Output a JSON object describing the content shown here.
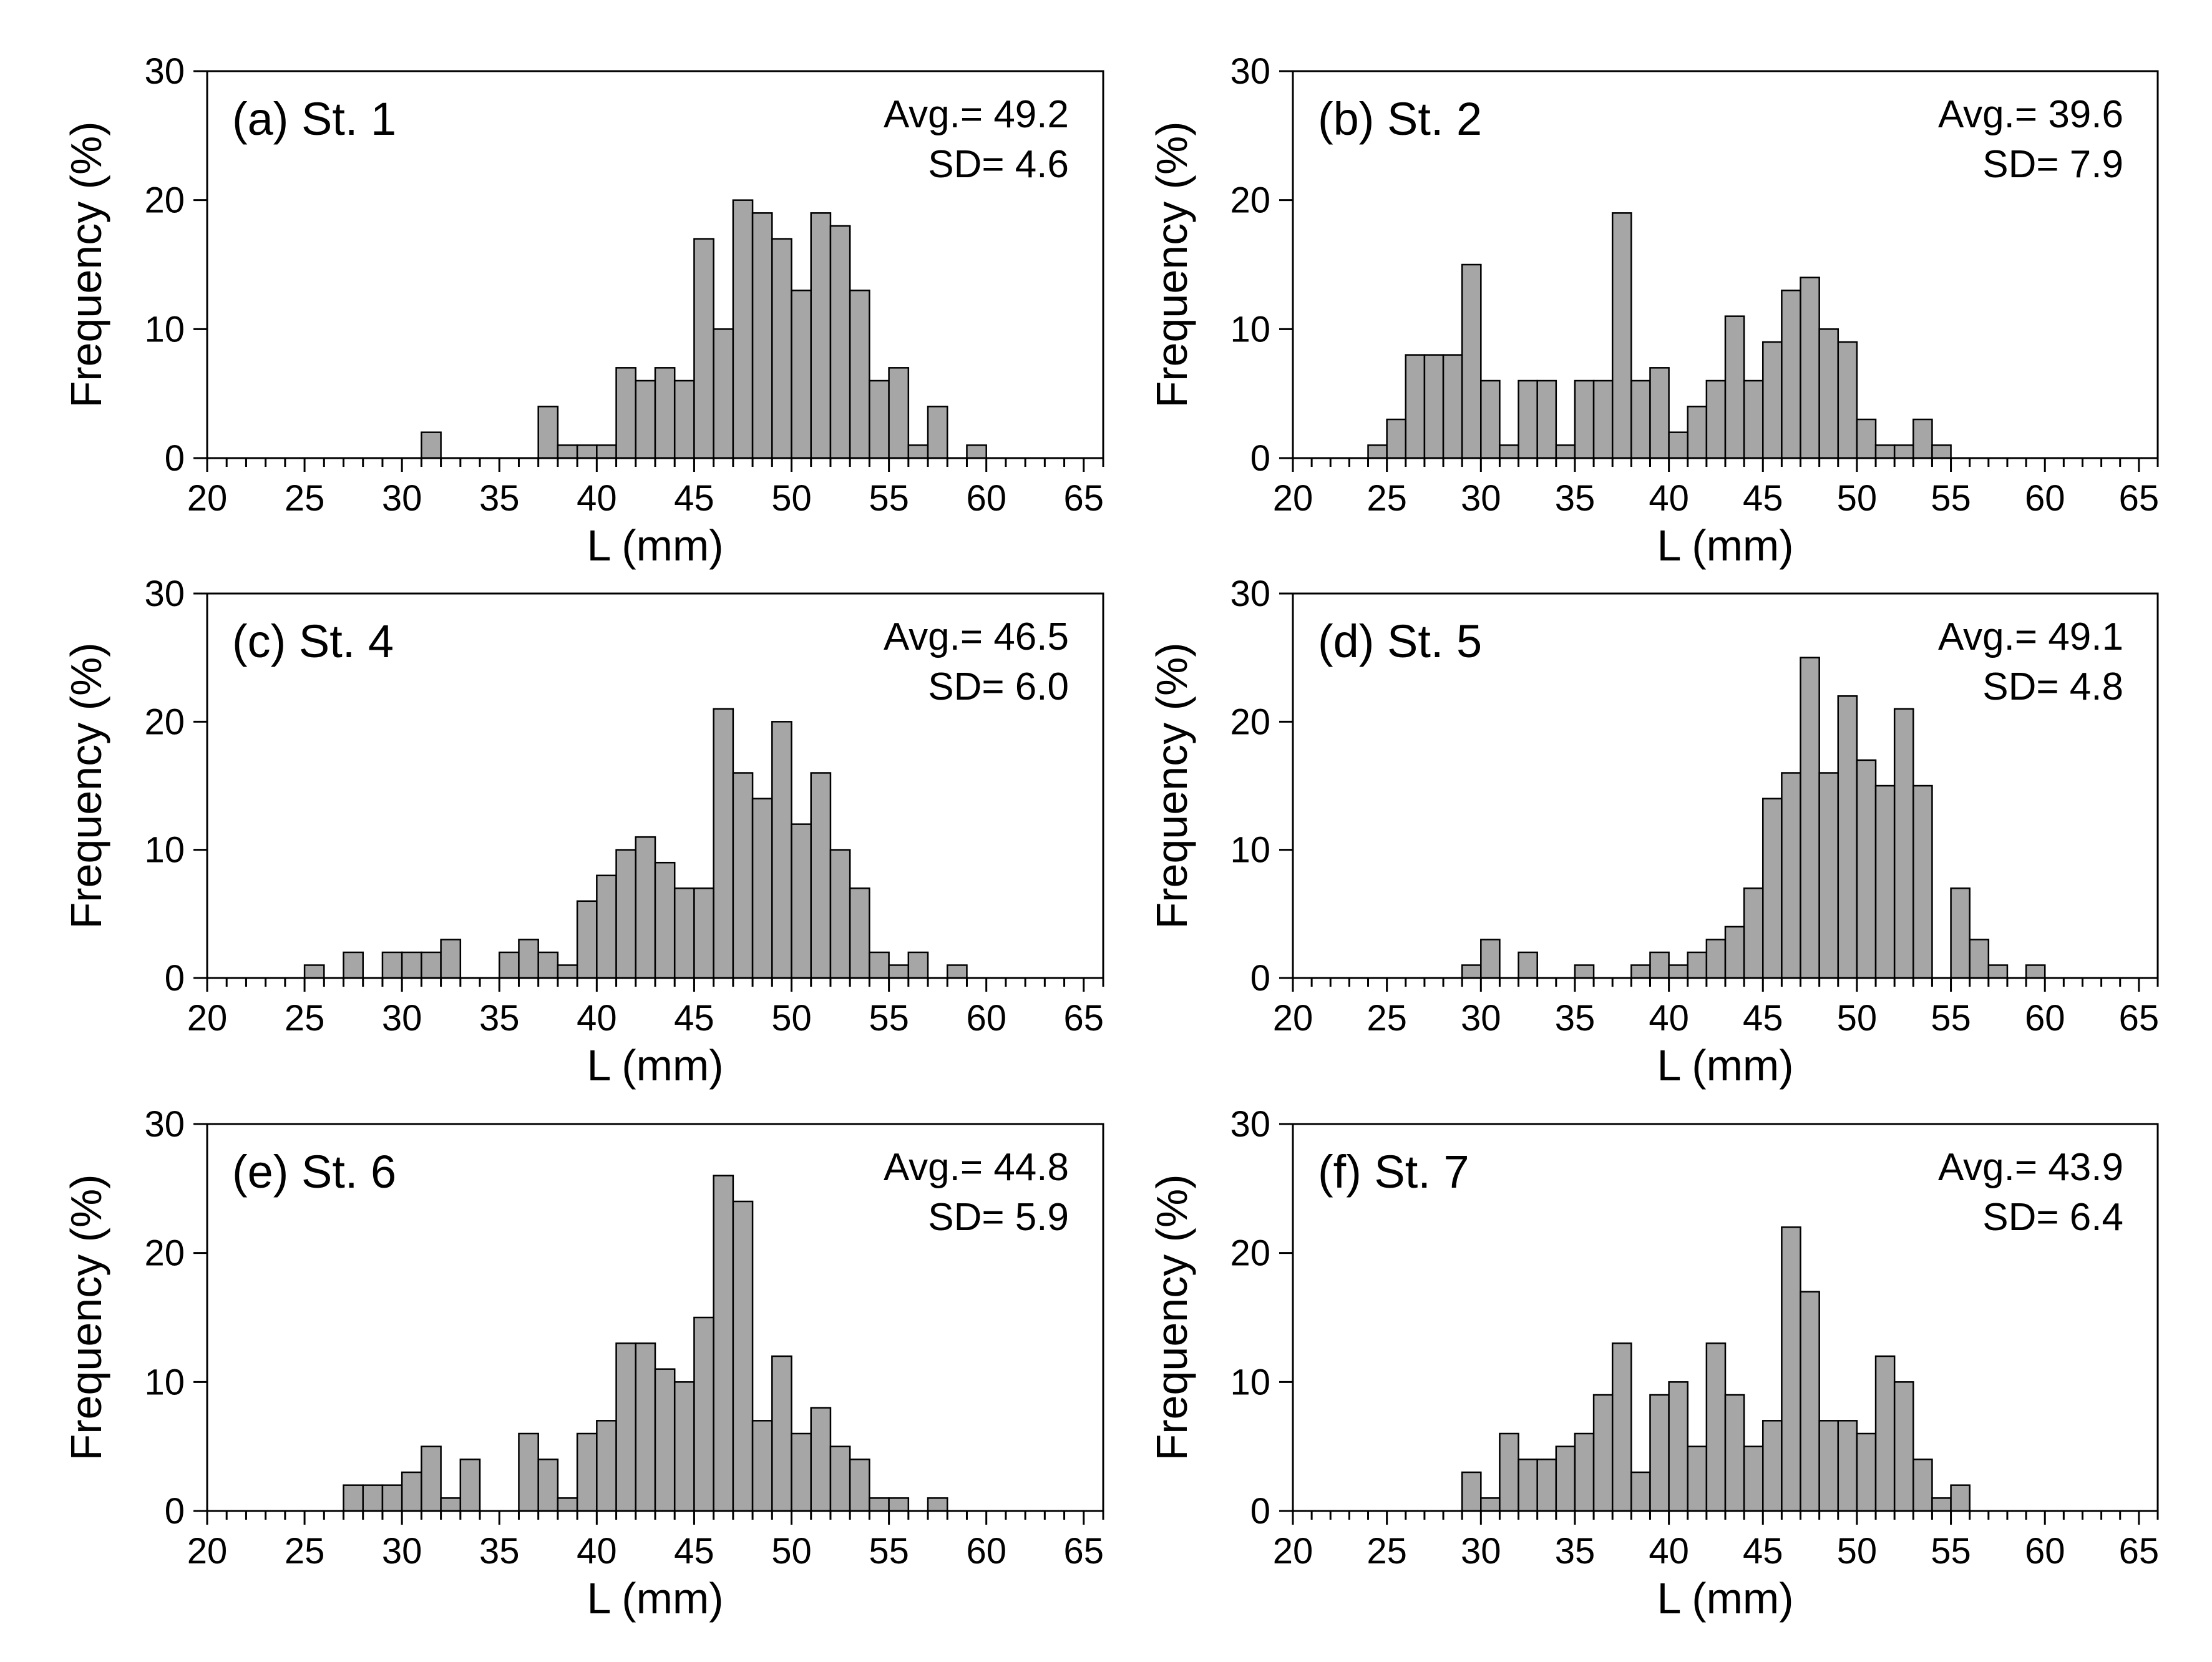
{
  "figure": {
    "bar_color": "#a6a6a6",
    "edge_color": "#000000",
    "background": "#ffffff"
  },
  "chart_data": [
    {
      "type": "bar",
      "label": "(a) St. 1",
      "stats": [
        "Avg.= 49.2",
        "SD= 4.6"
      ],
      "xlabel": "L (mm)",
      "ylabel": "Frequency (%)",
      "xlim": [
        20,
        66
      ],
      "ylim": [
        0,
        30
      ],
      "xticks": [
        20,
        25,
        30,
        35,
        40,
        45,
        50,
        55,
        60,
        65
      ],
      "yticks": [
        0,
        10,
        20,
        30
      ],
      "bins": [
        [
          31,
          2
        ],
        [
          37,
          4
        ],
        [
          38,
          1
        ],
        [
          39,
          1
        ],
        [
          40,
          1
        ],
        [
          41,
          7
        ],
        [
          42,
          6
        ],
        [
          43,
          7
        ],
        [
          44,
          6
        ],
        [
          45,
          17
        ],
        [
          46,
          10
        ],
        [
          47,
          20
        ],
        [
          48,
          19
        ],
        [
          49,
          17
        ],
        [
          50,
          13
        ],
        [
          51,
          19
        ],
        [
          52,
          18
        ],
        [
          53,
          13
        ],
        [
          54,
          6
        ],
        [
          55,
          7
        ],
        [
          56,
          1
        ],
        [
          57,
          4
        ],
        [
          59,
          1
        ]
      ]
    },
    {
      "type": "bar",
      "label": "(b) St. 2",
      "stats": [
        "Avg.= 39.6",
        "SD= 7.9"
      ],
      "xlabel": "L (mm)",
      "ylabel": "Frequency (%)",
      "xlim": [
        20,
        66
      ],
      "ylim": [
        0,
        30
      ],
      "xticks": [
        20,
        25,
        30,
        35,
        40,
        45,
        50,
        55,
        60,
        65
      ],
      "yticks": [
        0,
        10,
        20,
        30
      ],
      "bins": [
        [
          24,
          1
        ],
        [
          25,
          3
        ],
        [
          26,
          8
        ],
        [
          27,
          8
        ],
        [
          28,
          8
        ],
        [
          29,
          15
        ],
        [
          30,
          6
        ],
        [
          31,
          1
        ],
        [
          32,
          6
        ],
        [
          33,
          6
        ],
        [
          34,
          1
        ],
        [
          35,
          6
        ],
        [
          36,
          6
        ],
        [
          37,
          19
        ],
        [
          38,
          6
        ],
        [
          39,
          7
        ],
        [
          40,
          2
        ],
        [
          41,
          4
        ],
        [
          42,
          6
        ],
        [
          43,
          11
        ],
        [
          44,
          6
        ],
        [
          45,
          9
        ],
        [
          46,
          13
        ],
        [
          47,
          14
        ],
        [
          48,
          10
        ],
        [
          49,
          9
        ],
        [
          50,
          3
        ],
        [
          51,
          1
        ],
        [
          52,
          1
        ],
        [
          53,
          3
        ],
        [
          54,
          1
        ]
      ]
    },
    {
      "type": "bar",
      "label": "(c) St. 4",
      "stats": [
        "Avg.= 46.5",
        "SD= 6.0"
      ],
      "xlabel": "L (mm)",
      "ylabel": "Frequency (%)",
      "xlim": [
        20,
        66
      ],
      "ylim": [
        0,
        30
      ],
      "xticks": [
        20,
        25,
        30,
        35,
        40,
        45,
        50,
        55,
        60,
        65
      ],
      "yticks": [
        0,
        10,
        20,
        30
      ],
      "bins": [
        [
          25,
          1
        ],
        [
          27,
          2
        ],
        [
          29,
          2
        ],
        [
          30,
          2
        ],
        [
          31,
          2
        ],
        [
          32,
          3
        ],
        [
          35,
          2
        ],
        [
          36,
          3
        ],
        [
          37,
          2
        ],
        [
          38,
          1
        ],
        [
          39,
          6
        ],
        [
          40,
          8
        ],
        [
          41,
          10
        ],
        [
          42,
          11
        ],
        [
          43,
          9
        ],
        [
          44,
          7
        ],
        [
          45,
          7
        ],
        [
          46,
          21
        ],
        [
          47,
          16
        ],
        [
          48,
          14
        ],
        [
          49,
          20
        ],
        [
          50,
          12
        ],
        [
          51,
          16
        ],
        [
          52,
          10
        ],
        [
          53,
          7
        ],
        [
          54,
          2
        ],
        [
          55,
          1
        ],
        [
          56,
          2
        ],
        [
          58,
          1
        ]
      ]
    },
    {
      "type": "bar",
      "label": "(d) St. 5",
      "stats": [
        "Avg.= 49.1",
        "SD= 4.8"
      ],
      "xlabel": "L (mm)",
      "ylabel": "Frequency (%)",
      "xlim": [
        20,
        66
      ],
      "ylim": [
        0,
        30
      ],
      "xticks": [
        20,
        25,
        30,
        35,
        40,
        45,
        50,
        55,
        60,
        65
      ],
      "yticks": [
        0,
        10,
        20,
        30
      ],
      "bins": [
        [
          29,
          1
        ],
        [
          30,
          3
        ],
        [
          32,
          2
        ],
        [
          35,
          1
        ],
        [
          38,
          1
        ],
        [
          39,
          2
        ],
        [
          40,
          1
        ],
        [
          41,
          2
        ],
        [
          42,
          3
        ],
        [
          43,
          4
        ],
        [
          44,
          7
        ],
        [
          45,
          14
        ],
        [
          46,
          16
        ],
        [
          47,
          25
        ],
        [
          48,
          16
        ],
        [
          49,
          22
        ],
        [
          50,
          17
        ],
        [
          51,
          15
        ],
        [
          52,
          21
        ],
        [
          53,
          15
        ],
        [
          55,
          7
        ],
        [
          56,
          3
        ],
        [
          57,
          1
        ],
        [
          59,
          1
        ]
      ]
    },
    {
      "type": "bar",
      "label": "(e) St. 6",
      "stats": [
        "Avg.= 44.8",
        "SD= 5.9"
      ],
      "xlabel": "L (mm)",
      "ylabel": "Frequency (%)",
      "xlim": [
        20,
        66
      ],
      "ylim": [
        0,
        30
      ],
      "xticks": [
        20,
        25,
        30,
        35,
        40,
        45,
        50,
        55,
        60,
        65
      ],
      "yticks": [
        0,
        10,
        20,
        30
      ],
      "bins": [
        [
          27,
          2
        ],
        [
          28,
          2
        ],
        [
          29,
          2
        ],
        [
          30,
          3
        ],
        [
          31,
          5
        ],
        [
          32,
          1
        ],
        [
          33,
          4
        ],
        [
          36,
          6
        ],
        [
          37,
          4
        ],
        [
          38,
          1
        ],
        [
          39,
          6
        ],
        [
          40,
          7
        ],
        [
          41,
          13
        ],
        [
          42,
          13
        ],
        [
          43,
          11
        ],
        [
          44,
          10
        ],
        [
          45,
          15
        ],
        [
          46,
          26
        ],
        [
          47,
          24
        ],
        [
          48,
          7
        ],
        [
          49,
          12
        ],
        [
          50,
          6
        ],
        [
          51,
          8
        ],
        [
          52,
          5
        ],
        [
          53,
          4
        ],
        [
          54,
          1
        ],
        [
          55,
          1
        ],
        [
          57,
          1
        ]
      ]
    },
    {
      "type": "bar",
      "label": "(f) St. 7",
      "stats": [
        "Avg.= 43.9",
        "SD= 6.4"
      ],
      "xlabel": "L (mm)",
      "ylabel": "Frequency (%)",
      "xlim": [
        20,
        66
      ],
      "ylim": [
        0,
        30
      ],
      "xticks": [
        20,
        25,
        30,
        35,
        40,
        45,
        50,
        55,
        60,
        65
      ],
      "yticks": [
        0,
        10,
        20,
        30
      ],
      "bins": [
        [
          29,
          3
        ],
        [
          30,
          1
        ],
        [
          31,
          6
        ],
        [
          32,
          4
        ],
        [
          33,
          4
        ],
        [
          34,
          5
        ],
        [
          35,
          6
        ],
        [
          36,
          9
        ],
        [
          37,
          13
        ],
        [
          38,
          3
        ],
        [
          39,
          9
        ],
        [
          40,
          10
        ],
        [
          41,
          5
        ],
        [
          42,
          13
        ],
        [
          43,
          9
        ],
        [
          44,
          5
        ],
        [
          45,
          7
        ],
        [
          46,
          22
        ],
        [
          47,
          17
        ],
        [
          48,
          7
        ],
        [
          49,
          7
        ],
        [
          50,
          6
        ],
        [
          51,
          12
        ],
        [
          52,
          10
        ],
        [
          53,
          4
        ],
        [
          54,
          1
        ],
        [
          55,
          2
        ]
      ]
    }
  ]
}
